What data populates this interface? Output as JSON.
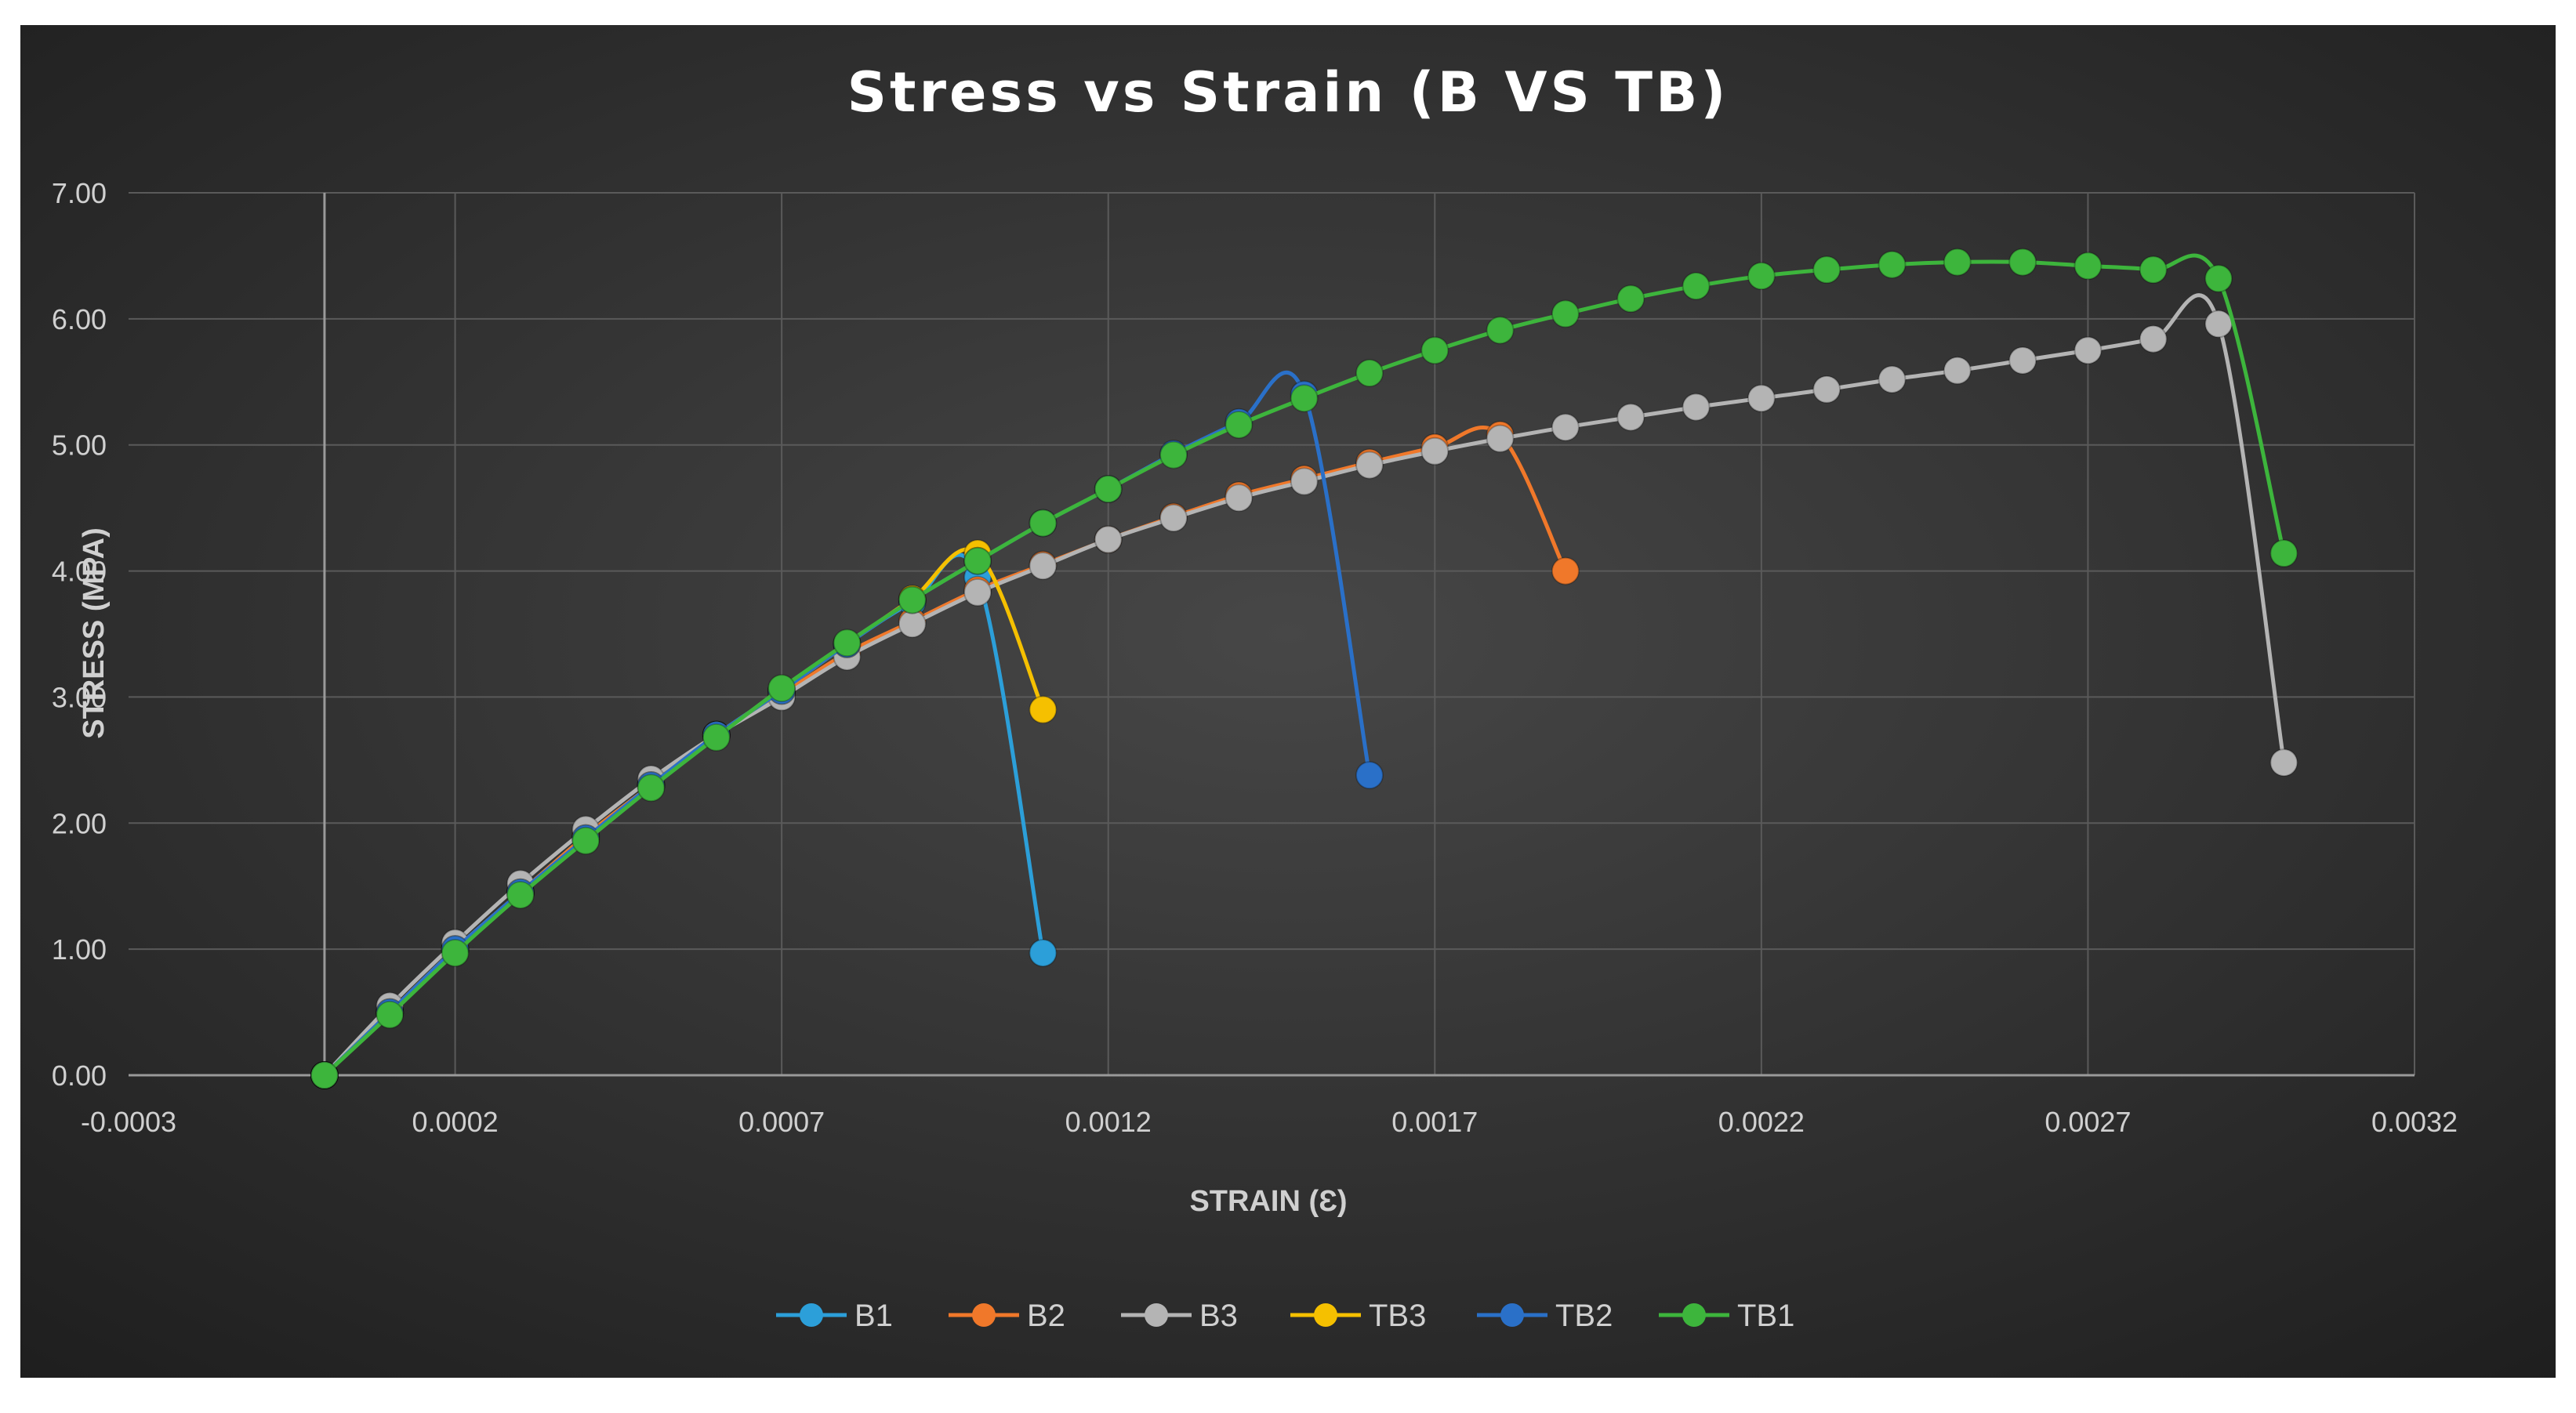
{
  "chart_data": {
    "type": "scatter",
    "title": "Stress vs Strain (B VS TB)",
    "xlabel": "STRAIN (Ɛ)",
    "ylabel": "STRESS (MPA)",
    "xlim": [
      -0.0003,
      0.0032
    ],
    "ylim": [
      0,
      7
    ],
    "x_ticks": [
      "-0.0003",
      "0.0002",
      "0.0007",
      "0.0012",
      "0.0017",
      "0.0022",
      "0.0027",
      "0.0032"
    ],
    "y_ticks": [
      "0.00",
      "1.00",
      "2.00",
      "3.00",
      "4.00",
      "5.00",
      "6.00",
      "7.00"
    ],
    "grid": true,
    "legend_position": "bottom",
    "background": "#2f2f2f",
    "series": [
      {
        "name": "B1",
        "color": "#2c9fd9",
        "x": [
          0,
          0.0001,
          0.0002,
          0.0003,
          0.0004,
          0.0005,
          0.0006,
          0.0007,
          0.0008,
          0.0009,
          0.001,
          0.0011
        ],
        "y": [
          0,
          0.5,
          1.0,
          1.45,
          1.9,
          2.3,
          2.7,
          3.05,
          3.42,
          3.75,
          3.95,
          0.97
        ]
      },
      {
        "name": "B2",
        "color": "#f0782a",
        "x": [
          0,
          0.0001,
          0.0002,
          0.0003,
          0.0004,
          0.0005,
          0.0006,
          0.0007,
          0.0008,
          0.0009,
          0.001,
          0.0011,
          0.0012,
          0.0013,
          0.0014,
          0.0015,
          0.0016,
          0.0017,
          0.0018,
          0.0019
        ],
        "y": [
          0,
          0.5,
          1.0,
          1.45,
          1.9,
          2.3,
          2.7,
          3.02,
          3.35,
          3.6,
          3.85,
          4.05,
          4.25,
          4.43,
          4.6,
          4.73,
          4.86,
          4.98,
          5.08,
          4.0
        ]
      },
      {
        "name": "B3",
        "color": "#b4b4b4",
        "x": [
          0,
          0.0001,
          0.0002,
          0.0003,
          0.0004,
          0.0005,
          0.0006,
          0.0007,
          0.0008,
          0.0009,
          0.001,
          0.0011,
          0.0012,
          0.0013,
          0.0014,
          0.0015,
          0.0016,
          0.0017,
          0.0018,
          0.0019,
          0.002,
          0.0021,
          0.0022,
          0.0023,
          0.0024,
          0.0025,
          0.0026,
          0.0027,
          0.0028,
          0.0029,
          0.003
        ],
        "y": [
          0,
          0.55,
          1.05,
          1.52,
          1.95,
          2.35,
          2.7,
          3.0,
          3.32,
          3.58,
          3.83,
          4.04,
          4.25,
          4.42,
          4.58,
          4.71,
          4.84,
          4.95,
          5.05,
          5.14,
          5.22,
          5.3,
          5.37,
          5.44,
          5.52,
          5.59,
          5.67,
          5.75,
          5.84,
          5.96,
          2.48
        ]
      },
      {
        "name": "TB3",
        "color": "#f5c000",
        "x": [
          0,
          0.0001,
          0.0002,
          0.0003,
          0.0004,
          0.0005,
          0.0006,
          0.0007,
          0.0008,
          0.0009,
          0.001,
          0.0011
        ],
        "y": [
          0,
          0.5,
          1.0,
          1.45,
          1.88,
          2.3,
          2.7,
          3.05,
          3.42,
          3.78,
          4.14,
          2.9
        ]
      },
      {
        "name": "TB2",
        "color": "#2a70c8",
        "x": [
          0,
          0.0001,
          0.0002,
          0.0003,
          0.0004,
          0.0005,
          0.0006,
          0.0007,
          0.0008,
          0.0009,
          0.001,
          0.0011,
          0.0012,
          0.0013,
          0.0014,
          0.0015,
          0.0016
        ],
        "y": [
          0,
          0.5,
          1.0,
          1.45,
          1.88,
          2.3,
          2.7,
          3.05,
          3.42,
          3.77,
          4.08,
          4.38,
          4.65,
          4.93,
          5.18,
          5.4,
          2.38
        ]
      },
      {
        "name": "TB1",
        "color": "#3db53c",
        "x": [
          0,
          0.0001,
          0.0002,
          0.0003,
          0.0004,
          0.0005,
          0.0006,
          0.0007,
          0.0008,
          0.0009,
          0.001,
          0.0011,
          0.0012,
          0.0013,
          0.0014,
          0.0015,
          0.0016,
          0.0017,
          0.0018,
          0.0019,
          0.002,
          0.0021,
          0.0022,
          0.0023,
          0.0024,
          0.0025,
          0.0026,
          0.0027,
          0.0028,
          0.0029,
          0.003
        ],
        "y": [
          0,
          0.48,
          0.97,
          1.43,
          1.86,
          2.28,
          2.68,
          3.07,
          3.43,
          3.77,
          4.08,
          4.38,
          4.65,
          4.92,
          5.16,
          5.37,
          5.57,
          5.75,
          5.91,
          6.04,
          6.16,
          6.26,
          6.34,
          6.39,
          6.43,
          6.45,
          6.45,
          6.42,
          6.39,
          6.32,
          4.14
        ]
      }
    ]
  }
}
